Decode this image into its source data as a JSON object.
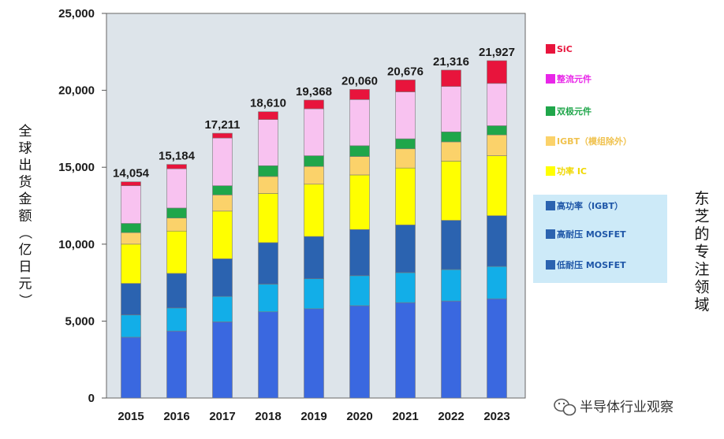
{
  "chart_data": {
    "type": "bar",
    "stacked": true,
    "categories": [
      "2015",
      "2016",
      "2017",
      "2018",
      "2019",
      "2020",
      "2021",
      "2022",
      "2023"
    ],
    "series": [
      {
        "name": "低耐压 MOSFET",
        "color": "#3a68e0",
        "values": [
          3950,
          4350,
          4950,
          5600,
          5800,
          6000,
          6200,
          6300,
          6450
        ]
      },
      {
        "name": "高耐压 MOSFET",
        "color": "#12aee8",
        "values": [
          1450,
          1500,
          1650,
          1800,
          1950,
          1950,
          1950,
          2050,
          2100
        ]
      },
      {
        "name": "高功率（IGBT）",
        "color": "#2b63b0",
        "values": [
          2050,
          2250,
          2450,
          2700,
          2750,
          3000,
          3100,
          3200,
          3300
        ]
      },
      {
        "name": "功率 IC",
        "color": "#ffff00",
        "values": [
          2550,
          2750,
          3100,
          3200,
          3400,
          3550,
          3700,
          3850,
          3900
        ]
      },
      {
        "name": "IGBT（模组除外）",
        "color": "#fbd26a",
        "values": [
          750,
          850,
          1050,
          1100,
          1150,
          1200,
          1250,
          1250,
          1350
        ]
      },
      {
        "name": "双极元件",
        "color": "#1fa64a",
        "values": [
          600,
          650,
          600,
          700,
          700,
          700,
          650,
          650,
          600
        ]
      },
      {
        "name": "整流元件",
        "color": "#f8c2f0",
        "values": [
          2450,
          2550,
          3100,
          3000,
          3050,
          3000,
          3050,
          2950,
          2750
        ]
      },
      {
        "name": "SiC",
        "color": "#e8143c",
        "values": [
          254,
          284,
          311,
          510,
          568,
          660,
          776,
          1066,
          1477
        ]
      }
    ],
    "totals": [
      "14,054",
      "15,184",
      "17,211",
      "18,610",
      "19,368",
      "20,060",
      "20,676",
      "21,316",
      "21,927"
    ],
    "yticks": [
      {
        "v": 0,
        "label": "0"
      },
      {
        "v": 5000,
        "label": "5,000"
      },
      {
        "v": 10000,
        "label": "10,000"
      },
      {
        "v": 15000,
        "label": "15,000"
      },
      {
        "v": 20000,
        "label": "20,000"
      },
      {
        "v": 25000,
        "label": "25,000"
      }
    ],
    "ylim": [
      0,
      25000
    ],
    "ylabel": "全球出货金额（亿日元）",
    "grid": false,
    "plot_background": "#dde4ea"
  },
  "legend": {
    "items": [
      {
        "label": "SiC",
        "color": "#e8143c",
        "text_color": "#e8143c"
      },
      {
        "label": "整流元件",
        "color": "#e826e8",
        "text_color": "#e826e8"
      },
      {
        "label": "双极元件",
        "color": "#1fa64a",
        "text_color": "#1fa64a"
      },
      {
        "label": "IGBT（模组除外）",
        "color": "#fbd26a",
        "text_color": "#f0c24e"
      },
      {
        "label": "功率 IC",
        "color": "#ffff00",
        "text_color": "#f0d800"
      },
      {
        "label": "高功率（IGBT）",
        "color": "#2b63b0",
        "text_color": "#1f57a8"
      },
      {
        "label": "高耐压 MOSFET",
        "color": "#2b63b0",
        "text_color": "#1f57a8"
      },
      {
        "label": "低耐压 MOSFET",
        "color": "#2b63b0",
        "text_color": "#1f57a8"
      }
    ],
    "highlight_color": "#cdeaf8"
  },
  "side_label": "东芝的专注领域",
  "watermark": "半导体行业观察"
}
